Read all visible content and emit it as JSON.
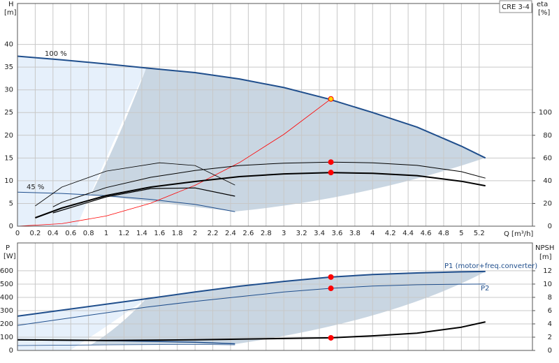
{
  "chart_data": [
    {
      "type": "line",
      "ylabel": "H",
      "yunit": "[m]",
      "y2label": "eta",
      "y2unit": "[%]",
      "xlabel": "Q [m³/h]",
      "model": "CRE 3-4",
      "labels": [
        "100 %",
        "45 %"
      ],
      "xlim": [
        0,
        5.8
      ],
      "xticks": [
        0,
        0.2,
        0.4,
        0.6,
        0.8,
        1,
        1.2,
        1.4,
        1.6,
        1.8,
        2,
        2.2,
        2.4,
        2.6,
        2.8,
        3,
        3.2,
        3.4,
        3.6,
        3.8,
        4,
        4.2,
        4.4,
        4.6,
        4.8,
        5,
        5.2
      ],
      "ylim": [
        0,
        49
      ],
      "yticks": [
        0,
        5,
        10,
        15,
        20,
        25,
        30,
        35,
        40
      ],
      "y2lim": [
        0,
        196
      ],
      "y2ticks": [
        0,
        20,
        40,
        60,
        80,
        100
      ],
      "grid": true,
      "series": [
        {
          "color": "#1f4e8c",
          "width": 2,
          "x": [
            0,
            0.5,
            1,
            1.45,
            2,
            2.5,
            3,
            3.5,
            4,
            4.5,
            5,
            5.27
          ],
          "values": [
            37.4,
            36.6,
            35.7,
            34.8,
            33.8,
            32.4,
            30.5,
            28,
            25,
            21.8,
            17.6,
            15
          ]
        },
        {
          "color": "#1f4e8c",
          "width": 1,
          "x": [
            0,
            0.5,
            1,
            1.5,
            2,
            2.45
          ],
          "values": [
            7.5,
            7.2,
            6.7,
            5.9,
            4.8,
            3.2
          ]
        },
        {
          "color": "#ff0000",
          "width": 0.8,
          "x": [
            0,
            0.5,
            1,
            1.5,
            2,
            2.5,
            3,
            3.55
          ],
          "values": [
            0,
            0.56,
            2.25,
            5.06,
            8.99,
            14,
            20.2,
            28.3
          ]
        },
        {
          "color": "#000000",
          "width": 1,
          "axis": "y2",
          "x": [
            0.4,
            0.5,
            1,
            1.5,
            2,
            2.5,
            3,
            3.53,
            4,
            4.5,
            5,
            5.27
          ],
          "values": [
            17,
            21,
            34,
            43,
            49,
            53.4,
            55.5,
            56.4,
            55.8,
            53.5,
            48,
            42.3
          ]
        },
        {
          "color": "#000000",
          "width": 2,
          "axis": "y2",
          "x": [
            0.2,
            0.5,
            1,
            1.5,
            2,
            2.5,
            3,
            3.53,
            4,
            4.5,
            5,
            5.27
          ],
          "values": [
            7.4,
            16,
            27,
            34.4,
            39.3,
            43.6,
            46,
            47.2,
            46.5,
            44.5,
            39.5,
            35.6
          ]
        },
        {
          "color": "#000000",
          "width": 0.8,
          "axis": "y2",
          "x": [
            0.2,
            0.5,
            1,
            1.6,
            2,
            2.45
          ],
          "values": [
            17.8,
            34.4,
            48.5,
            55.8,
            53.4,
            36.2
          ]
        },
        {
          "color": "#000000",
          "width": 1.2,
          "axis": "y2",
          "x": [
            0.4,
            1,
            1.5,
            2,
            2.45
          ],
          "values": [
            11.7,
            25.8,
            33.1,
            33.7,
            26.4
          ]
        },
        {
          "style": "markers",
          "color": "#ffd700",
          "stroke": "#ff0000",
          "x": [
            3.53
          ],
          "values": [
            28
          ]
        },
        {
          "style": "markers",
          "color": "#ff0000",
          "axis": "y2",
          "x": [
            3.53,
            3.53
          ],
          "values": [
            56.4,
            47.2
          ]
        }
      ]
    },
    {
      "type": "line",
      "ylabel": "P",
      "yunit": "[W]",
      "y2label": "NPSH",
      "y2unit": "[m]",
      "labels": [
        "P1 (motor+freq.converter)",
        "P2"
      ],
      "xlim": [
        0,
        5.8
      ],
      "ylim": [
        0,
        810
      ],
      "yticks": [
        0,
        100,
        200,
        300,
        400,
        500,
        600
      ],
      "y2lim": [
        0,
        16.2
      ],
      "y2ticks": [
        0,
        2,
        4,
        6,
        8,
        10,
        12
      ],
      "grid": true,
      "series": [
        {
          "color": "#1f4e8c",
          "width": 2,
          "x": [
            0,
            1.45,
            2,
            2.5,
            3,
            3.53,
            4,
            4.5,
            5,
            5.27
          ],
          "values": [
            258,
            389,
            440,
            484,
            520,
            553,
            572,
            584,
            592,
            595
          ]
        },
        {
          "color": "#1f4e8c",
          "width": 1,
          "x": [
            0,
            1.45,
            2,
            2.5,
            3,
            3.53,
            4,
            4.5,
            5,
            5.27
          ],
          "values": [
            189,
            326,
            370,
            405,
            440,
            468,
            485,
            495,
            499,
            500
          ]
        },
        {
          "color": "#1f4e8c",
          "width": 1.5,
          "x": [
            0,
            1,
            2,
            2.45
          ],
          "values": [
            79,
            74,
            62,
            50
          ]
        },
        {
          "color": "#1f4e8c",
          "width": 0.8,
          "x": [
            0,
            1,
            2,
            2.45
          ],
          "values": [
            37,
            42,
            45,
            42
          ]
        },
        {
          "color": "#000000",
          "width": 2,
          "axis": "y2",
          "x": [
            0,
            1,
            2,
            3,
            3.53,
            4,
            4.5,
            5,
            5.27
          ],
          "values": [
            1.6,
            1.5,
            1.6,
            1.8,
            1.9,
            2.2,
            2.6,
            3.5,
            4.3
          ]
        },
        {
          "style": "markers",
          "color": "#ff0000",
          "x": [
            3.53,
            3.53
          ],
          "values": [
            553,
            468
          ]
        },
        {
          "style": "markers",
          "color": "#ff0000",
          "axis": "y2",
          "x": [
            3.53
          ],
          "values": [
            1.9
          ]
        }
      ]
    }
  ]
}
